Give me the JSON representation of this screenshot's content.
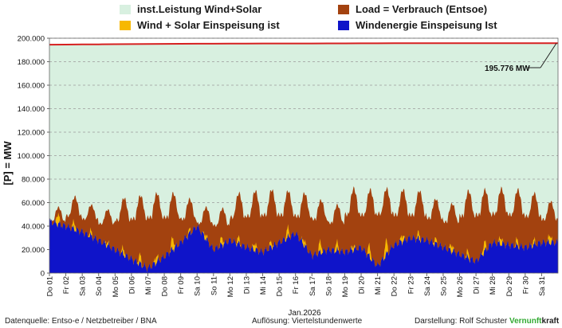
{
  "legend": {
    "installed": "inst.Leistung Wind+Solar",
    "load": "Load =  Verbrauch (Entsoe)",
    "wind_solar": "Wind + Solar Einspeisung ist",
    "wind": "Windenergie Einspeisung Ist"
  },
  "footer": {
    "source": "Datenquelle:  Entso-e  / Netzbetreiber / BNA",
    "resolution": "Auflösung: Viertelstundenwerte",
    "presentation": "Darstellung:  Rolf Schuster",
    "brand_green": "Vernunft",
    "brand_black": "kraft"
  },
  "colors": {
    "installed": "#d8f0e0",
    "load": "#a3420f",
    "wind_solar": "#f7b800",
    "wind": "#0f14c9",
    "installed_line": "#d62020"
  },
  "chart_data": {
    "type": "area",
    "title": "",
    "xlabel": "Jan.2026",
    "ylabel": "[P] = MW",
    "ylim": [
      0,
      200000
    ],
    "yticks": [
      "0",
      "20.000",
      "40.000",
      "60.000",
      "80.000",
      "100.000",
      "120.000",
      "140.000",
      "160.000",
      "180.000",
      "200.000"
    ],
    "x_ticks": [
      "Do 01",
      "Fr 02",
      "Sa 03",
      "So 04",
      "Mo 05",
      "Di 06",
      "Mi 07",
      "Do 08",
      "Fr 09",
      "Sa 10",
      "So 11",
      "Mo 12",
      "Di 13",
      "Mi 14",
      "Do 15",
      "Fr 16",
      "Sa 17",
      "So 18",
      "Mo 19",
      "Di 20",
      "Mi 21",
      "Do 22",
      "Fr 23",
      "Sa 24",
      "So 25",
      "Mo 26",
      "Di 27",
      "Mi 28",
      "Do 29",
      "Fr 30",
      "Sa 31"
    ],
    "days": 31,
    "annotation": "195.776 MW",
    "series": [
      {
        "name": "inst.Leistung Wind+Solar",
        "values": [
          194500,
          194600,
          194700,
          194800,
          194900,
          195000,
          195100,
          195200,
          195250,
          195300,
          195350,
          195400,
          195450,
          195500,
          195500,
          195550,
          195550,
          195600,
          195600,
          195650,
          195650,
          195700,
          195700,
          195700,
          195720,
          195740,
          195750,
          195760,
          195770,
          195775,
          195776
        ]
      },
      {
        "name": "Load =  Verbrauch (Entsoe)",
        "day_peak": [
          56000,
          65000,
          58000,
          54000,
          64000,
          66000,
          68000,
          68000,
          63000,
          56000,
          55000,
          68000,
          70000,
          71000,
          70000,
          68000,
          62000,
          58000,
          72000,
          71000,
          72000,
          71000,
          70000,
          63000,
          59000,
          70000,
          71000,
          72000,
          71000,
          68000,
          61000
        ],
        "day_trough": [
          42000,
          46000,
          44000,
          40000,
          42000,
          43000,
          44000,
          44000,
          43000,
          40000,
          38000,
          44000,
          45000,
          46000,
          46000,
          45000,
          43000,
          40000,
          46000,
          46000,
          47000,
          46000,
          46000,
          44000,
          41000,
          45000,
          46000,
          47000,
          46000,
          45000,
          43000
        ]
      },
      {
        "name": "Wind + Solar Einspeisung ist",
        "solar_peak": [
          9000,
          6000,
          4000,
          3000,
          5000,
          7000,
          6000,
          10000,
          3000,
          4000,
          6000,
          5000,
          6000,
          4000,
          8000,
          5000,
          9000,
          7000,
          4000,
          9000,
          12000,
          6000,
          5000,
          4000,
          6000,
          5000,
          8000,
          6000,
          5000,
          4000,
          7000
        ]
      },
      {
        "name": "Windenergie Einspeisung Ist",
        "daily": [
          44000,
          40000,
          35000,
          28000,
          20000,
          12000,
          4000,
          14000,
          26000,
          40000,
          20000,
          28000,
          22000,
          18000,
          26000,
          34000,
          15000,
          20000,
          18000,
          22000,
          6000,
          24000,
          30000,
          28000,
          22000,
          16000,
          10000,
          26000,
          24000,
          22000,
          26000
        ]
      }
    ]
  }
}
